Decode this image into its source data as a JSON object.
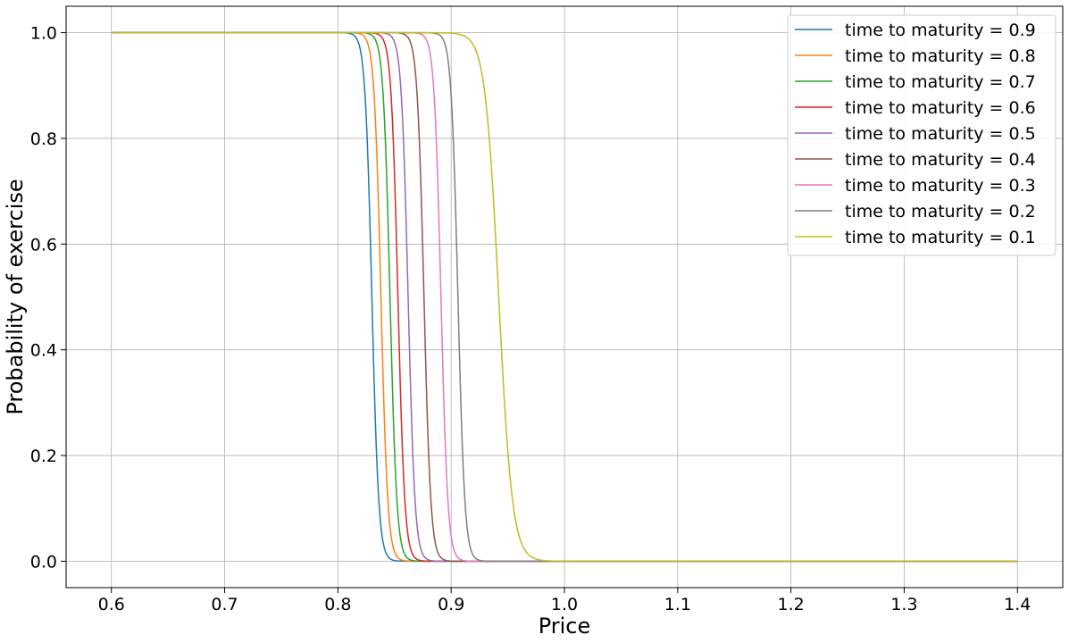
{
  "chart_data": {
    "type": "line",
    "xlabel": "Price",
    "ylabel": "Probability of exercise",
    "xlim": [
      0.56,
      1.44
    ],
    "ylim": [
      -0.05,
      1.05
    ],
    "xticks": [
      "0.6",
      "0.7",
      "0.8",
      "0.9",
      "1.0",
      "1.1",
      "1.2",
      "1.3",
      "1.4"
    ],
    "yticks": [
      "0.0",
      "0.2",
      "0.4",
      "0.6",
      "0.8",
      "1.0"
    ],
    "grid": true,
    "legend_position": "top-right",
    "x_range": [
      0.6,
      1.4
    ],
    "series": [
      {
        "name": "time to maturity = 0.9",
        "color": "#1f77b4",
        "midpoint": 0.83,
        "width": 0.003
      },
      {
        "name": "time to maturity = 0.8",
        "color": "#ff7f0e",
        "midpoint": 0.838,
        "width": 0.003
      },
      {
        "name": "time to maturity = 0.7",
        "color": "#2ca02c",
        "midpoint": 0.846,
        "width": 0.003
      },
      {
        "name": "time to maturity = 0.6",
        "color": "#d62728",
        "midpoint": 0.853,
        "width": 0.003
      },
      {
        "name": "time to maturity = 0.5",
        "color": "#9467bd",
        "midpoint": 0.862,
        "width": 0.003
      },
      {
        "name": "time to maturity = 0.4",
        "color": "#8c564b",
        "midpoint": 0.876,
        "width": 0.003
      },
      {
        "name": "time to maturity = 0.3",
        "color": "#e377c2",
        "midpoint": 0.891,
        "width": 0.003
      },
      {
        "name": "time to maturity = 0.2",
        "color": "#7f7f7f",
        "midpoint": 0.906,
        "width": 0.003
      },
      {
        "name": "time to maturity = 0.1",
        "color": "#bcbd22",
        "midpoint": 0.942,
        "width": 0.006
      }
    ]
  }
}
